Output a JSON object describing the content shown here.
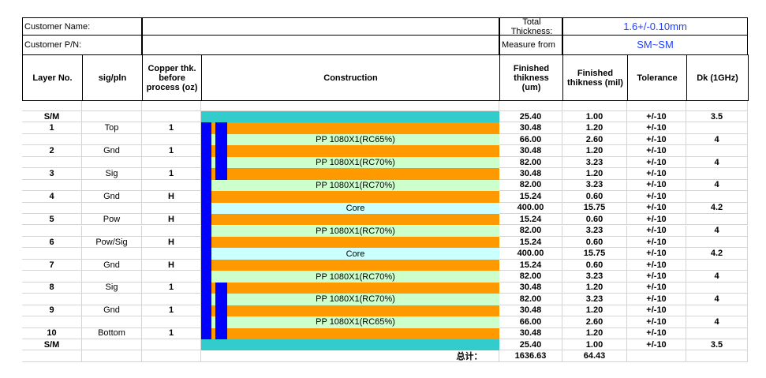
{
  "header": {
    "customer_name": "Customer Name:",
    "customer_pn": "Customer P/N:",
    "total_thickness_label": "Total Thickness:",
    "total_thickness_value": "1.6+/-0.10mm",
    "measure_label": "Measure from",
    "measure_value": "SM~SM"
  },
  "columns": {
    "layer": "Layer No.",
    "sig": "sig/pln",
    "copper": "Copper thk. before process (oz)",
    "construction": "Construction",
    "um": "Finished thikness (um)",
    "mil": "Finished thikness (mil)",
    "tol": "Tolerance",
    "dk": "Dk (1GHz)"
  },
  "rows": [
    {
      "layer": "S/M",
      "um": "25.40",
      "mil": "1.00",
      "tol": "+/-10",
      "dk": "3.5",
      "color": "#33cccc"
    },
    {
      "layer": "1",
      "sig": "Top",
      "copper": "1",
      "um": "30.48",
      "mil": "1.20",
      "tol": "+/-10",
      "color": "#ff9900"
    },
    {
      "construction": "PP 1080X1(RC65%)",
      "um": "66.00",
      "mil": "2.60",
      "tol": "+/-10",
      "dk": "4",
      "color": "#ccffcc"
    },
    {
      "layer": "2",
      "sig": "Gnd",
      "copper": "1",
      "um": "30.48",
      "mil": "1.20",
      "tol": "+/-10",
      "color": "#ff9900"
    },
    {
      "construction": "PP 1080X1(RC70%)",
      "um": "82.00",
      "mil": "3.23",
      "tol": "+/-10",
      "dk": "4",
      "color": "#ccffcc"
    },
    {
      "layer": "3",
      "sig": "Sig",
      "copper": "1",
      "um": "30.48",
      "mil": "1.20",
      "tol": "+/-10",
      "color": "#ff9900"
    },
    {
      "construction": "PP 1080X1(RC70%)",
      "um": "82.00",
      "mil": "3.23",
      "tol": "+/-10",
      "dk": "4",
      "color": "#ccffcc"
    },
    {
      "layer": "4",
      "sig": "Gnd",
      "copper": "H",
      "um": "15.24",
      "mil": "0.60",
      "tol": "+/-10",
      "color": "#ff9900"
    },
    {
      "construction": "Core",
      "um": "400.00",
      "mil": "15.75",
      "tol": "+/-10",
      "dk": "4.2",
      "color": "#ccffff"
    },
    {
      "layer": "5",
      "sig": "Pow",
      "copper": "H",
      "um": "15.24",
      "mil": "0.60",
      "tol": "+/-10",
      "color": "#ff9900"
    },
    {
      "construction": "PP 1080X1(RC70%)",
      "um": "82.00",
      "mil": "3.23",
      "tol": "+/-10",
      "dk": "4",
      "color": "#ccffcc"
    },
    {
      "layer": "6",
      "sig": "Pow/Sig",
      "copper": "H",
      "um": "15.24",
      "mil": "0.60",
      "tol": "+/-10",
      "color": "#ff9900"
    },
    {
      "construction": "Core",
      "um": "400.00",
      "mil": "15.75",
      "tol": "+/-10",
      "dk": "4.2",
      "color": "#ccffff"
    },
    {
      "layer": "7",
      "sig": "Gnd",
      "copper": "H",
      "um": "15.24",
      "mil": "0.60",
      "tol": "+/-10",
      "color": "#ff9900"
    },
    {
      "construction": "PP 1080X1(RC70%)",
      "um": "82.00",
      "mil": "3.23",
      "tol": "+/-10",
      "dk": "4",
      "color": "#ccffcc"
    },
    {
      "layer": "8",
      "sig": "Sig",
      "copper": "1",
      "um": "30.48",
      "mil": "1.20",
      "tol": "+/-10",
      "color": "#ff9900"
    },
    {
      "construction": "PP 1080X1(RC70%)",
      "um": "82.00",
      "mil": "3.23",
      "tol": "+/-10",
      "dk": "4",
      "color": "#ccffcc"
    },
    {
      "layer": "9",
      "sig": "Gnd",
      "copper": "1",
      "um": "30.48",
      "mil": "1.20",
      "tol": "+/-10",
      "color": "#ff9900"
    },
    {
      "construction": "PP 1080X1(RC65%)",
      "um": "66.00",
      "mil": "2.60",
      "tol": "+/-10",
      "dk": "4",
      "color": "#ccffcc"
    },
    {
      "layer": "10",
      "sig": "Bottom",
      "copper": "1",
      "um": "30.48",
      "mil": "1.20",
      "tol": "+/-10",
      "color": "#ff9900"
    },
    {
      "layer": "S/M",
      "um": "25.40",
      "mil": "1.00",
      "tol": "+/-10",
      "dk": "3.5",
      "color": "#33cccc"
    }
  ],
  "total": {
    "label": "总计：",
    "um": "1636.63",
    "mil": "64.43"
  }
}
